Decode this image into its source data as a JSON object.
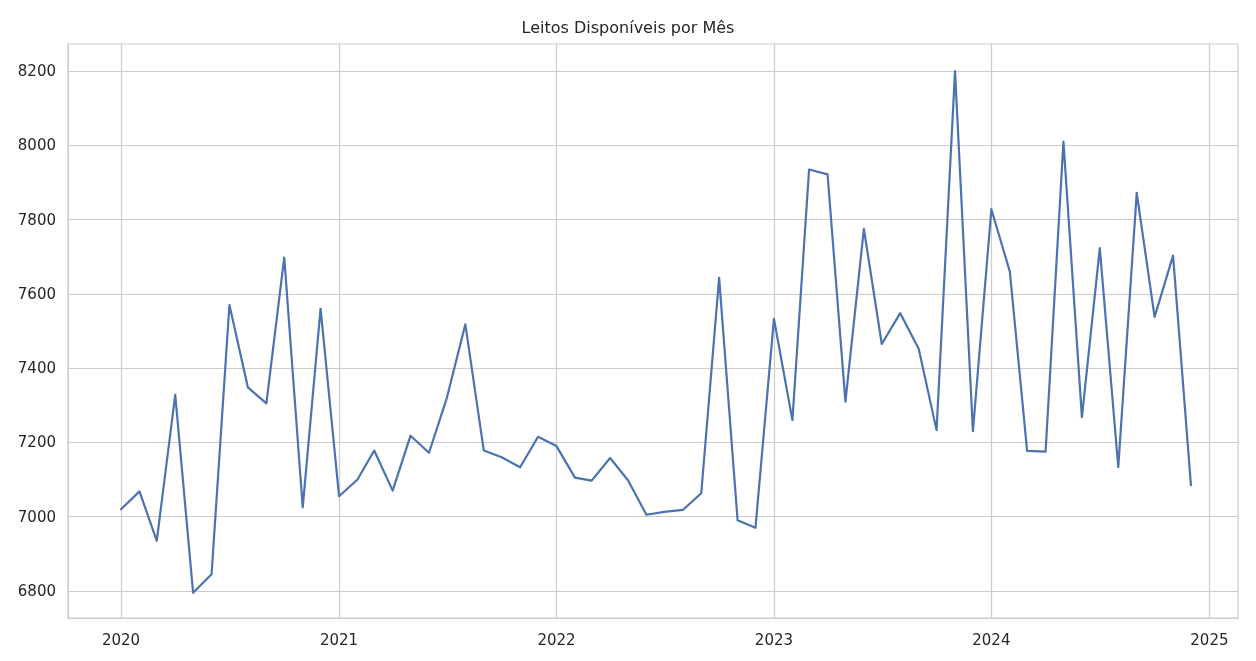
{
  "chart_data": {
    "type": "line",
    "title": "Leitos Disponíveis por Mês",
    "x": [
      "2020-01",
      "2020-02",
      "2020-03",
      "2020-04",
      "2020-05",
      "2020-06",
      "2020-07",
      "2020-08",
      "2020-09",
      "2020-10",
      "2020-11",
      "2020-12",
      "2021-01",
      "2021-02",
      "2021-03",
      "2021-04",
      "2021-05",
      "2021-06",
      "2021-07",
      "2021-08",
      "2021-09",
      "2021-10",
      "2021-11",
      "2021-12",
      "2022-01",
      "2022-02",
      "2022-03",
      "2022-04",
      "2022-05",
      "2022-06",
      "2022-07",
      "2022-08",
      "2022-09",
      "2022-10",
      "2022-11",
      "2022-12",
      "2023-01",
      "2023-02",
      "2023-03",
      "2023-04",
      "2023-05",
      "2023-06",
      "2023-07",
      "2023-08",
      "2023-09",
      "2023-10",
      "2023-11",
      "2023-12",
      "2024-01",
      "2024-02",
      "2024-03",
      "2024-04",
      "2024-05",
      "2024-06",
      "2024-07",
      "2024-08",
      "2024-09",
      "2024-10",
      "2024-11",
      "2024-12"
    ],
    "series": [
      {
        "color": "#4c72b0",
        "values": [
          7020,
          7068,
          6935,
          7328,
          6795,
          6845,
          7570,
          7348,
          7305,
          7698,
          7025,
          7560,
          7055,
          7100,
          7178,
          7070,
          7218,
          7172,
          7320,
          7518,
          7178,
          7160,
          7133,
          7215,
          7190,
          7105,
          7097,
          7158,
          7098,
          7005,
          7013,
          7018,
          7063,
          7643,
          6990,
          6970,
          7533,
          7260,
          7935,
          7922,
          7310,
          7775,
          7465,
          7548,
          7452,
          7233,
          8200,
          7230,
          7828,
          7660,
          7177,
          7175,
          8010,
          7268,
          7723,
          7133,
          7872,
          7538,
          7703,
          7085
        ]
      }
    ],
    "xlim": [
      "2019-10-04",
      "2025-02-18"
    ],
    "xticks": [
      {
        "value": "2020-01-01",
        "label": "2020"
      },
      {
        "value": "2021-01-01",
        "label": "2021"
      },
      {
        "value": "2022-01-01",
        "label": "2022"
      },
      {
        "value": "2023-01-01",
        "label": "2023"
      },
      {
        "value": "2024-01-01",
        "label": "2024"
      },
      {
        "value": "2025-01-01",
        "label": "2025"
      }
    ],
    "ylim": [
      6727,
      8273
    ],
    "yticks": [
      6800,
      7000,
      7200,
      7400,
      7600,
      7800,
      8000,
      8200
    ],
    "grid": true,
    "marker": "none",
    "line_style": "solid"
  }
}
